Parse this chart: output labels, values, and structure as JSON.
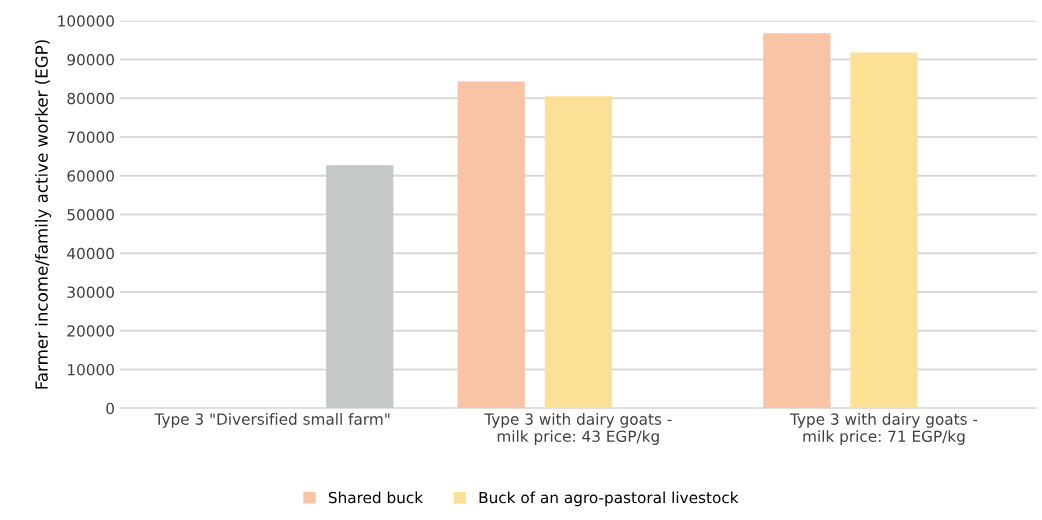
{
  "chart_data": {
    "type": "bar",
    "ylabel": "Farmer income/family active worker (EGP)",
    "categories": [
      "Type 3 \"Diversified small farm\"",
      "Type 3 with dairy goats - milk price: 43 EGP/kg",
      "Type 3 with dairy goats - milk price: 71 EGP/kg"
    ],
    "series": [
      {
        "name": "Shared buck",
        "color": "#f8c4a5",
        "values": [
          null,
          84300,
          96800
        ]
      },
      {
        "name": "Buck of an agro-pastoral livestock",
        "color": "#fbe096",
        "values": [
          null,
          80500,
          91800
        ]
      },
      {
        "color": "#c5c8c8",
        "values": [
          62700,
          null,
          null
        ]
      }
    ],
    "ylim": [
      0,
      100000
    ],
    "yticks": [
      0,
      10000,
      20000,
      30000,
      40000,
      50000,
      60000,
      70000,
      80000,
      90000,
      100000
    ],
    "grid": "y",
    "legend": "bottom"
  }
}
